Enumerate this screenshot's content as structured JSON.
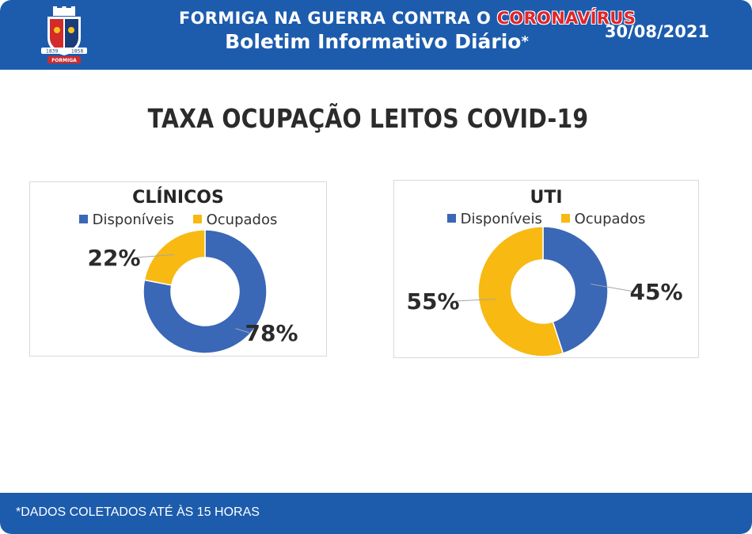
{
  "header": {
    "line1_prefix": "FORMIGA NA GUERRA CONTRA O ",
    "line1_highlight": "CORONAVÍRUS",
    "line2": "Boletim Informativo Diário",
    "line2_mark": "*",
    "date": "30/08/2021",
    "logo_icon": "coat-of-arms-icon",
    "logo_text": "FORMIGA",
    "logo_left_year": "1839",
    "logo_right_year": "1858"
  },
  "title": "TAXA OCUPAÇÃO LEITOS COVID-19",
  "colors": {
    "header_bg": "#1d5cad",
    "disponiveis": "#3a67b6",
    "ocupados": "#f7b912",
    "corona_red": "#e0262b"
  },
  "chart_data": [
    {
      "type": "pie",
      "subtype": "donut",
      "title": "CLÍNICOS",
      "legend": [
        "Disponíveis",
        "Ocupados"
      ],
      "legend_placement": "top",
      "categories": [
        "Disponíveis",
        "Ocupados"
      ],
      "values": [
        78,
        22
      ],
      "labels": [
        "78%",
        "22%"
      ]
    },
    {
      "type": "pie",
      "subtype": "donut",
      "title": "UTI",
      "legend": [
        "Disponíveis",
        "Ocupados"
      ],
      "legend_placement": "top",
      "categories": [
        "Disponíveis",
        "Ocupados"
      ],
      "values": [
        45,
        55
      ],
      "labels": [
        "45%",
        "55%"
      ]
    }
  ],
  "footer": "*DADOS COLETADOS ATÉ ÀS 15 HORAS"
}
